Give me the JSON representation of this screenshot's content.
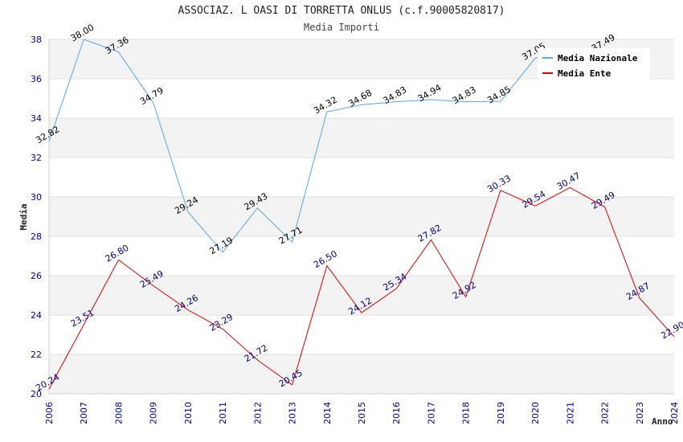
{
  "title": "ASSOCIAZ. L OASI DI TORRETTA ONLUS (c.f.90005820817)",
  "subtitle": "Media Importi",
  "chart_data": {
    "type": "line",
    "title": "ASSOCIAZ. L OASI DI TORRETTA ONLUS (c.f.90005820817)",
    "subtitle": "Media Importi",
    "xlabel": "Anno",
    "ylabel": "Media",
    "ylim": [
      20,
      38
    ],
    "yticks": [
      20,
      22,
      24,
      26,
      28,
      30,
      32,
      34,
      36,
      38
    ],
    "grid": true,
    "legend_position": "top-right",
    "categories": [
      "2006",
      "2007",
      "2008",
      "2009",
      "2010",
      "2011",
      "2012",
      "2013",
      "2014",
      "2015",
      "2016",
      "2017",
      "2018",
      "2019",
      "2020",
      "2021",
      "2022",
      "2023",
      "2024"
    ],
    "series": [
      {
        "name": "Media Nazionale",
        "color": "#5aa5e6",
        "label_color": "#000000",
        "values": [
          32.82,
          38.0,
          37.36,
          34.79,
          29.24,
          27.19,
          29.43,
          27.71,
          34.32,
          34.68,
          34.83,
          34.94,
          34.83,
          34.85,
          37.05,
          null,
          37.49,
          null,
          null
        ],
        "labels": [
          "32.82",
          "38.00",
          "37.36",
          "34.79",
          "29.24",
          "27.19",
          "29.43",
          "27.71",
          "34.32",
          "34.68",
          "34.83",
          "34.94",
          "34.83",
          "34.85",
          "37.05",
          "",
          "37.49",
          "",
          ""
        ]
      },
      {
        "name": "Media Ente",
        "color": "#e00000",
        "label_color": "#000080",
        "values": [
          20.24,
          23.51,
          26.8,
          25.49,
          24.26,
          23.29,
          21.72,
          20.45,
          26.5,
          24.12,
          25.34,
          27.82,
          24.92,
          30.33,
          29.54,
          30.47,
          29.49,
          24.87,
          22.9
        ],
        "labels": [
          "20.24",
          "23.51",
          "26.80",
          "25.49",
          "24.26",
          "23.29",
          "21.72",
          "20.45",
          "26.50",
          "24.12",
          "25.34",
          "27.82",
          "24.92",
          "30.33",
          "29.54",
          "30.47",
          "29.49",
          "24.87",
          "22.90"
        ]
      }
    ]
  }
}
